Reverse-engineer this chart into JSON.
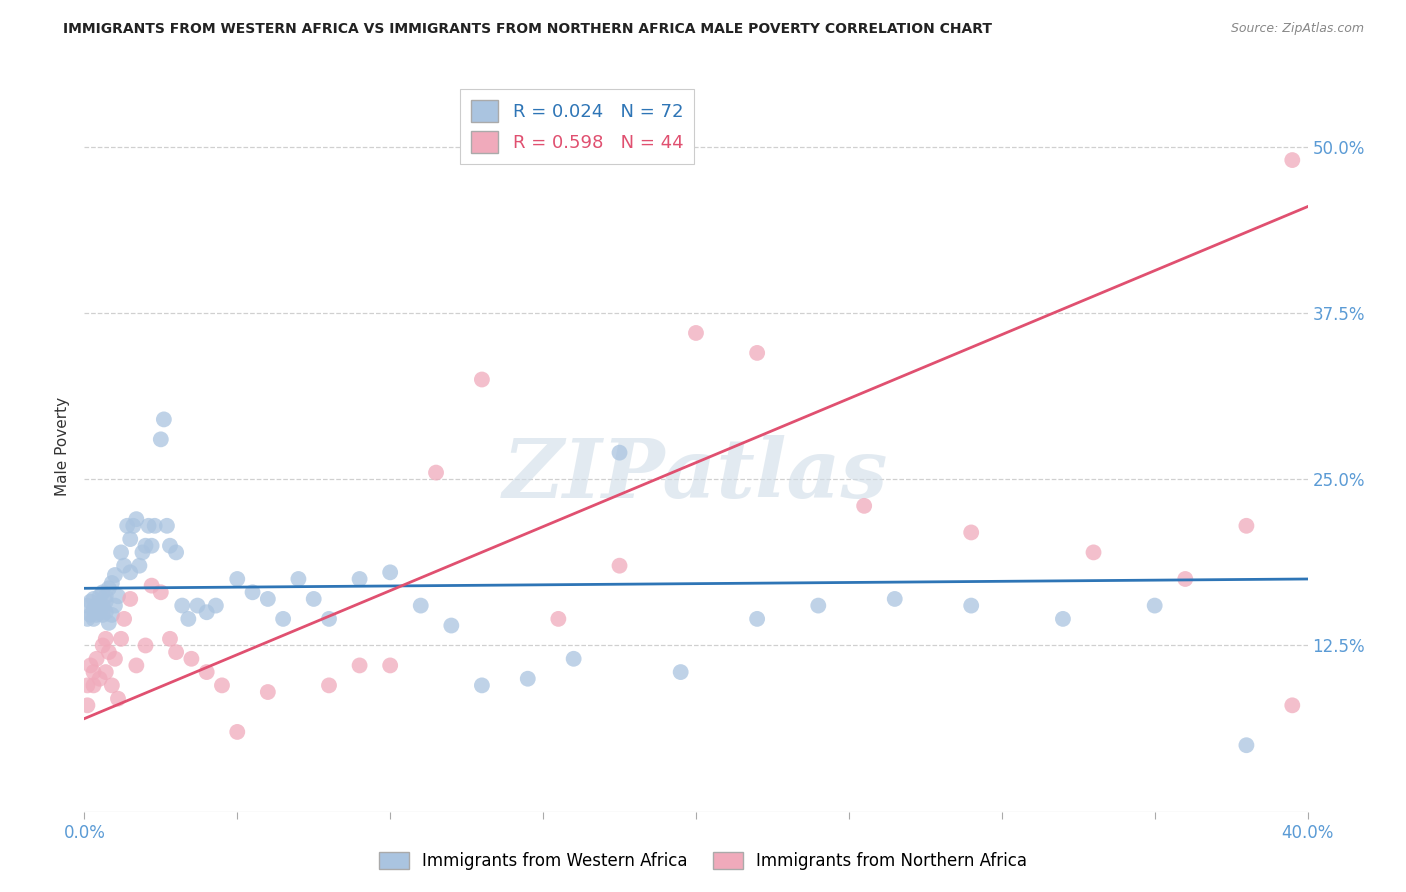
{
  "title": "IMMIGRANTS FROM WESTERN AFRICA VS IMMIGRANTS FROM NORTHERN AFRICA MALE POVERTY CORRELATION CHART",
  "source": "Source: ZipAtlas.com",
  "tick_color": "#5b9bd5",
  "ylabel": "Male Poverty",
  "xlim": [
    0.0,
    0.4
  ],
  "ylim": [
    0.0,
    0.55
  ],
  "yticks_right": [
    0.125,
    0.25,
    0.375,
    0.5
  ],
  "ytick_labels_right": [
    "12.5%",
    "25.0%",
    "37.5%",
    "50.0%"
  ],
  "grid_color": "#d0d0d0",
  "blue_color": "#aac4e0",
  "pink_color": "#f0aabb",
  "blue_line_color": "#2e75b6",
  "pink_line_color": "#e05070",
  "R_blue": 0.024,
  "N_blue": 72,
  "R_pink": 0.598,
  "N_pink": 44,
  "blue_x": [
    0.001,
    0.001,
    0.002,
    0.002,
    0.003,
    0.003,
    0.003,
    0.004,
    0.004,
    0.004,
    0.005,
    0.005,
    0.005,
    0.006,
    0.006,
    0.006,
    0.007,
    0.007,
    0.007,
    0.008,
    0.008,
    0.009,
    0.009,
    0.01,
    0.01,
    0.011,
    0.012,
    0.013,
    0.014,
    0.015,
    0.015,
    0.016,
    0.017,
    0.018,
    0.019,
    0.02,
    0.021,
    0.022,
    0.023,
    0.025,
    0.026,
    0.027,
    0.028,
    0.03,
    0.032,
    0.034,
    0.037,
    0.04,
    0.043,
    0.05,
    0.055,
    0.06,
    0.065,
    0.07,
    0.075,
    0.08,
    0.09,
    0.1,
    0.11,
    0.12,
    0.13,
    0.145,
    0.16,
    0.175,
    0.195,
    0.22,
    0.24,
    0.265,
    0.29,
    0.32,
    0.35,
    0.38
  ],
  "blue_y": [
    0.155,
    0.145,
    0.158,
    0.148,
    0.152,
    0.145,
    0.16,
    0.15,
    0.155,
    0.148,
    0.162,
    0.15,
    0.155,
    0.165,
    0.155,
    0.148,
    0.162,
    0.15,
    0.158,
    0.168,
    0.142,
    0.172,
    0.148,
    0.155,
    0.178,
    0.162,
    0.195,
    0.185,
    0.215,
    0.18,
    0.205,
    0.215,
    0.22,
    0.185,
    0.195,
    0.2,
    0.215,
    0.2,
    0.215,
    0.28,
    0.295,
    0.215,
    0.2,
    0.195,
    0.155,
    0.145,
    0.155,
    0.15,
    0.155,
    0.175,
    0.165,
    0.16,
    0.145,
    0.175,
    0.16,
    0.145,
    0.175,
    0.18,
    0.155,
    0.14,
    0.095,
    0.1,
    0.115,
    0.27,
    0.105,
    0.145,
    0.155,
    0.16,
    0.155,
    0.145,
    0.155,
    0.05
  ],
  "pink_x": [
    0.001,
    0.001,
    0.002,
    0.003,
    0.003,
    0.004,
    0.005,
    0.006,
    0.007,
    0.007,
    0.008,
    0.009,
    0.01,
    0.011,
    0.012,
    0.013,
    0.015,
    0.017,
    0.02,
    0.022,
    0.025,
    0.028,
    0.03,
    0.035,
    0.04,
    0.045,
    0.05,
    0.06,
    0.08,
    0.09,
    0.1,
    0.115,
    0.13,
    0.155,
    0.175,
    0.2,
    0.22,
    0.255,
    0.29,
    0.33,
    0.36,
    0.38,
    0.395,
    0.395
  ],
  "pink_y": [
    0.095,
    0.08,
    0.11,
    0.095,
    0.105,
    0.115,
    0.1,
    0.125,
    0.13,
    0.105,
    0.12,
    0.095,
    0.115,
    0.085,
    0.13,
    0.145,
    0.16,
    0.11,
    0.125,
    0.17,
    0.165,
    0.13,
    0.12,
    0.115,
    0.105,
    0.095,
    0.06,
    0.09,
    0.095,
    0.11,
    0.11,
    0.255,
    0.325,
    0.145,
    0.185,
    0.36,
    0.345,
    0.23,
    0.21,
    0.195,
    0.175,
    0.215,
    0.08,
    0.49
  ],
  "watermark_text": "ZIPatlas",
  "background_color": "#ffffff"
}
